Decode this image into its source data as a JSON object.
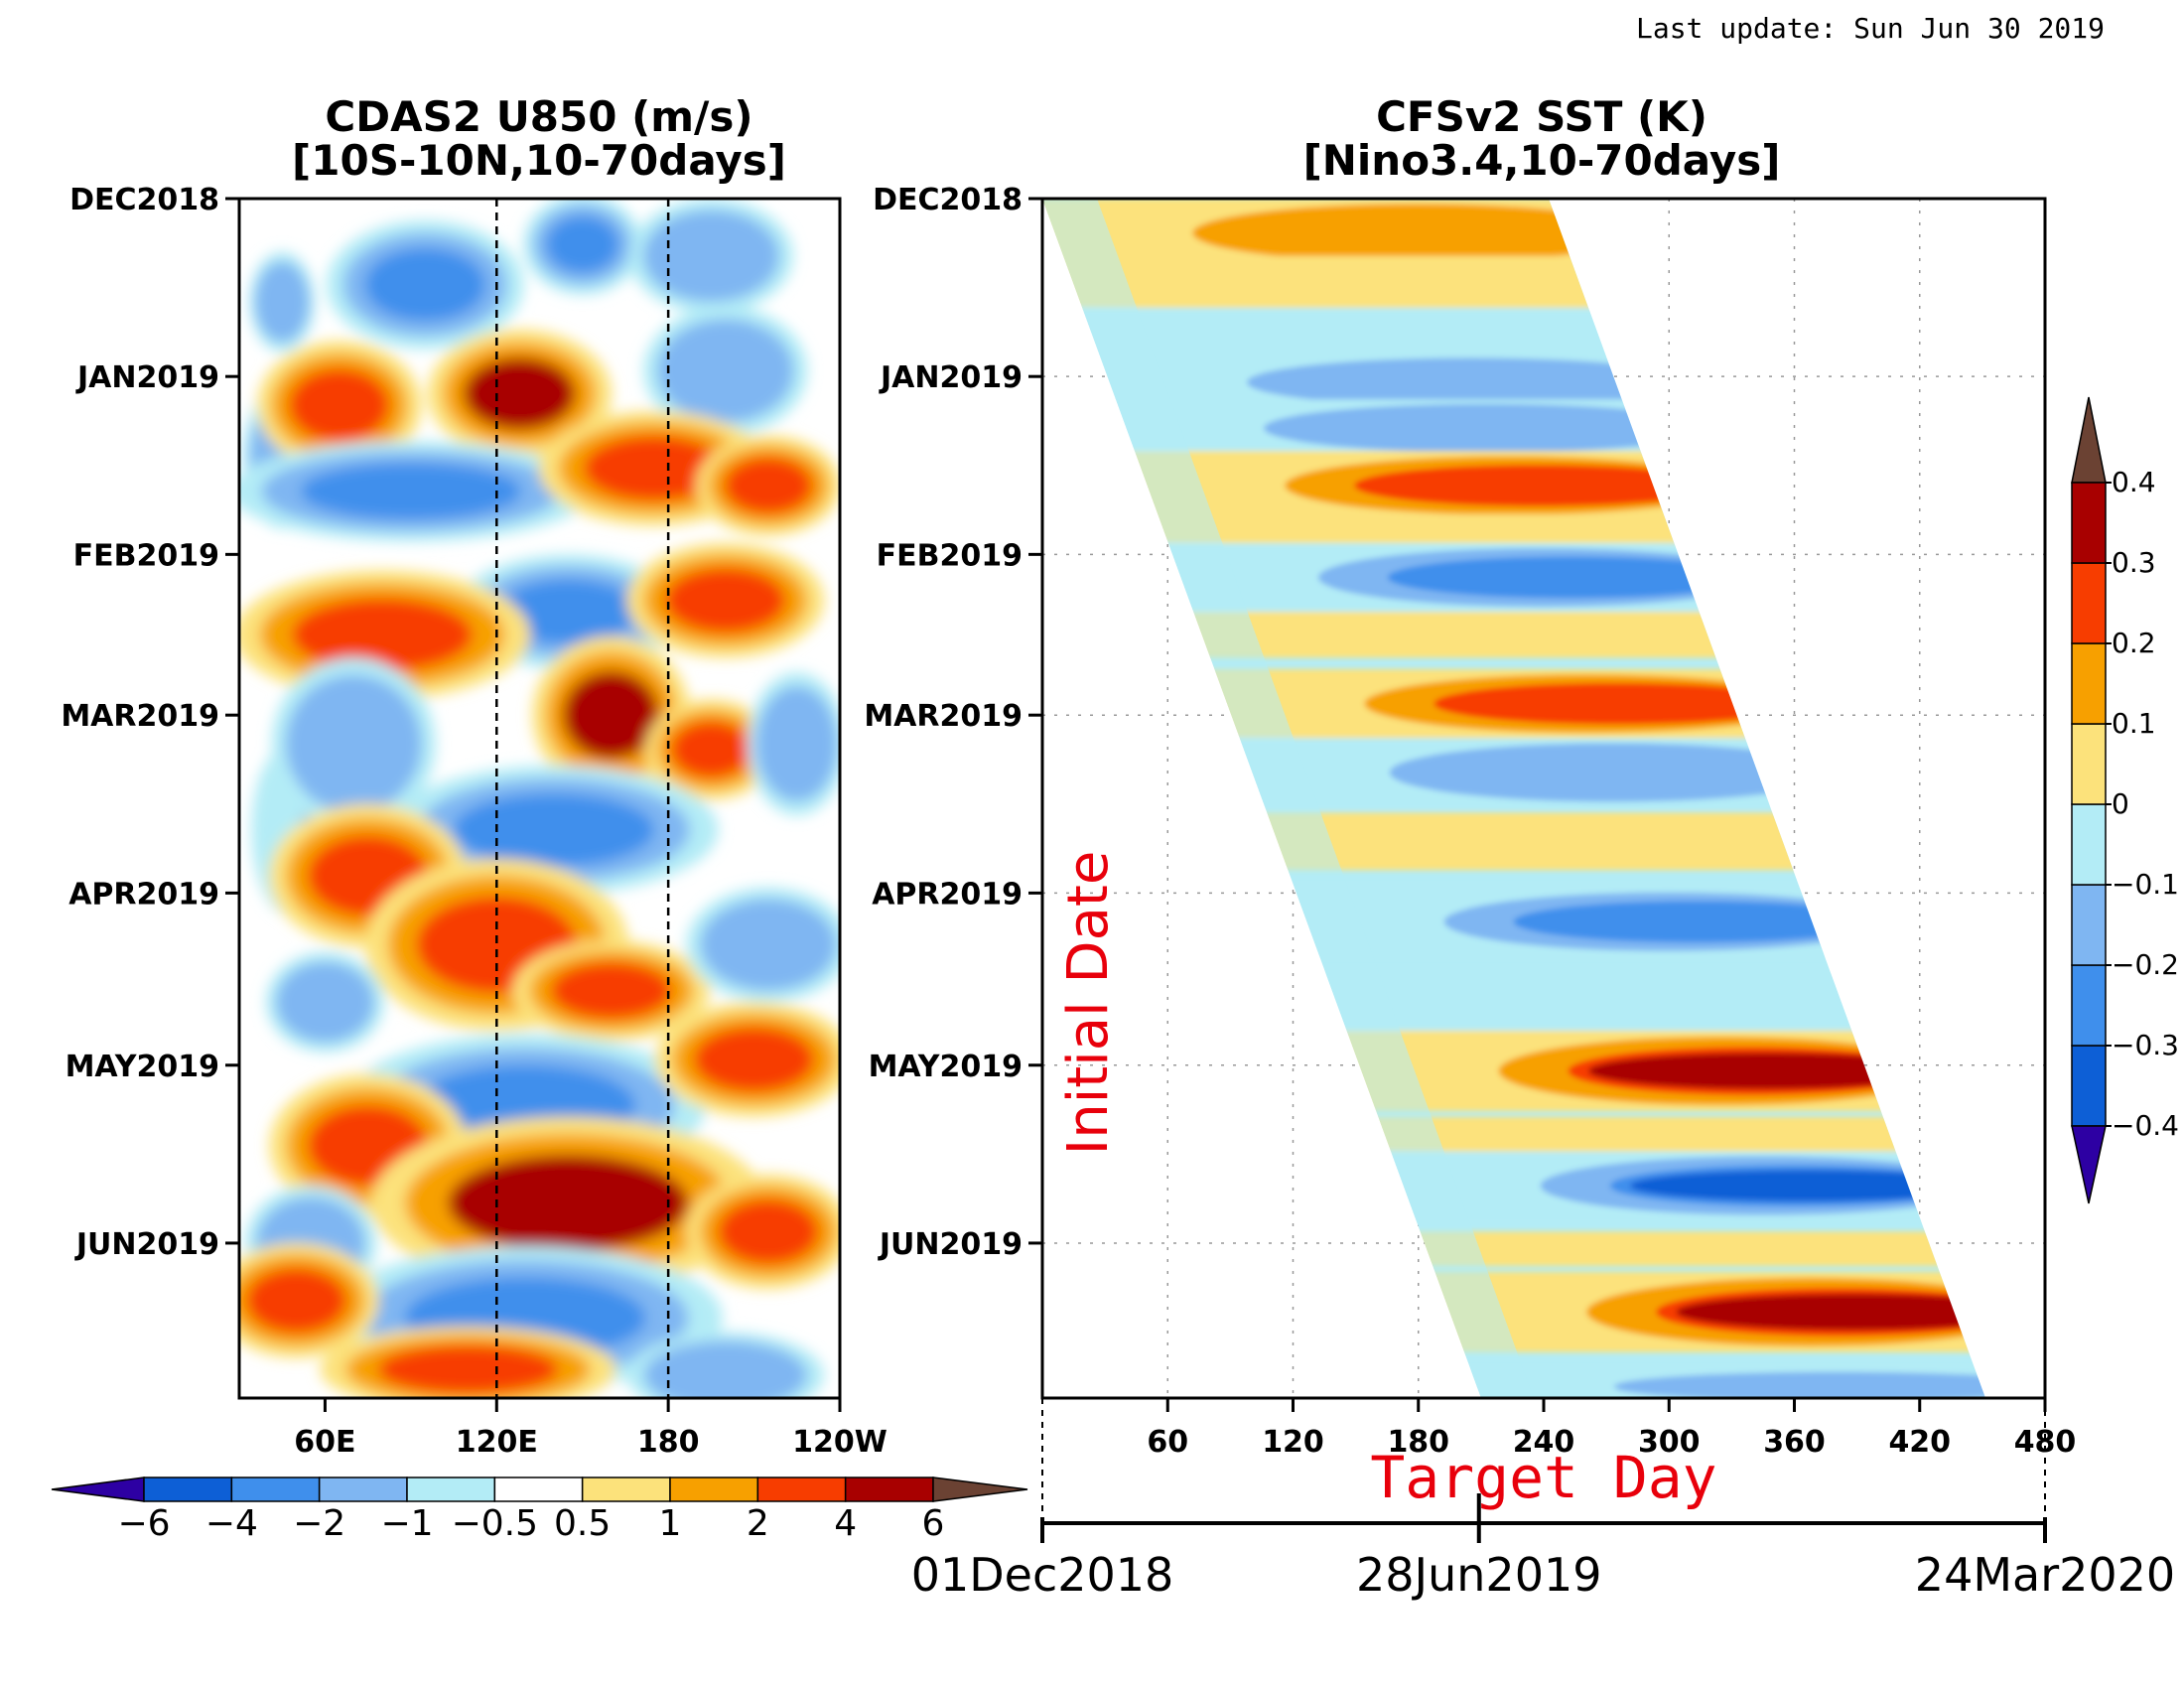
{
  "last_update": "Last update: Sun Jun 30 2019",
  "chart_data": [
    {
      "type": "heatmap",
      "title": "CDAS2 U850 (m/s)",
      "subtitle": "[10S-10N,10-70days]",
      "x_ticks": [
        "60E",
        "120E",
        "180",
        "120W"
      ],
      "x_tick_values": [
        60,
        120,
        180,
        240
      ],
      "xlim": [
        30,
        240
      ],
      "y_ticks": [
        "DEC2018",
        "JAN2019",
        "FEB2019",
        "MAR2019",
        "APR2019",
        "MAY2019",
        "JUN2019"
      ],
      "y_tick_values": [
        0,
        31,
        62,
        90,
        121,
        151,
        182
      ],
      "ylim": [
        0,
        209
      ],
      "reference_lines": [
        120,
        180
      ],
      "levels": [
        -6,
        -4,
        -2,
        -1,
        -0.5,
        0.5,
        1,
        2,
        4,
        6
      ],
      "colorbar_labels": [
        "−6",
        "−4",
        "−2",
        "−1",
        "−0.5",
        "0.5",
        "1",
        "2",
        "4",
        "6"
      ],
      "colorbar_colors": [
        "#2d00a3",
        "#0d5fd6",
        "#3f8fec",
        "#7fb6f2",
        "#b3ecf6",
        "#ffffff",
        "#fce27b",
        "#f7a000",
        "#f73d00",
        "#a80000",
        "#6b4233"
      ],
      "colorbar_orientation": "horizontal",
      "features": [
        {
          "lon": 45,
          "day": 18,
          "v": -1.2,
          "rx": 10,
          "ry": 7
        },
        {
          "lon": 45,
          "day": 45,
          "v": -1.8,
          "rx": 12,
          "ry": 10
        },
        {
          "lon": 48,
          "day": 110,
          "v": -1.0,
          "rx": 12,
          "ry": 12
        },
        {
          "lon": 60,
          "day": 112,
          "v": -2.3,
          "rx": 10,
          "ry": 8
        },
        {
          "lon": 95,
          "day": 15,
          "v": -2.8,
          "rx": 30,
          "ry": 9
        },
        {
          "lon": 150,
          "day": 8,
          "v": -2.6,
          "rx": 18,
          "ry": 7
        },
        {
          "lon": 195,
          "day": 10,
          "v": -1.5,
          "rx": 25,
          "ry": 8
        },
        {
          "lon": 65,
          "day": 36,
          "v": 3.0,
          "rx": 25,
          "ry": 9
        },
        {
          "lon": 128,
          "day": 34,
          "v": 4.5,
          "rx": 28,
          "ry": 9
        },
        {
          "lon": 200,
          "day": 30,
          "v": -2.0,
          "rx": 25,
          "ry": 9
        },
        {
          "lon": 90,
          "day": 51,
          "v": -3.5,
          "rx": 55,
          "ry": 7
        },
        {
          "lon": 175,
          "day": 47,
          "v": 3.5,
          "rx": 35,
          "ry": 8
        },
        {
          "lon": 215,
          "day": 50,
          "v": 2.8,
          "rx": 22,
          "ry": 7
        },
        {
          "lon": 145,
          "day": 72,
          "v": -2.7,
          "rx": 35,
          "ry": 8
        },
        {
          "lon": 80,
          "day": 76,
          "v": 3.5,
          "rx": 45,
          "ry": 9
        },
        {
          "lon": 200,
          "day": 70,
          "v": 3.0,
          "rx": 30,
          "ry": 8
        },
        {
          "lon": 70,
          "day": 95,
          "v": -1.6,
          "rx": 25,
          "ry": 12
        },
        {
          "lon": 160,
          "day": 90,
          "v": 4.5,
          "rx": 24,
          "ry": 11
        },
        {
          "lon": 195,
          "day": 96,
          "v": 2.5,
          "rx": 20,
          "ry": 7
        },
        {
          "lon": 225,
          "day": 95,
          "v": -1.2,
          "rx": 15,
          "ry": 10
        },
        {
          "lon": 140,
          "day": 110,
          "v": -2.8,
          "rx": 50,
          "ry": 9
        },
        {
          "lon": 75,
          "day": 118,
          "v": 2.3,
          "rx": 30,
          "ry": 10
        },
        {
          "lon": 120,
          "day": 130,
          "v": 2.0,
          "rx": 40,
          "ry": 12
        },
        {
          "lon": 160,
          "day": 138,
          "v": 2.6,
          "rx": 30,
          "ry": 7
        },
        {
          "lon": 215,
          "day": 130,
          "v": -1.5,
          "rx": 25,
          "ry": 8
        },
        {
          "lon": 60,
          "day": 140,
          "v": -1.6,
          "rx": 18,
          "ry": 7
        },
        {
          "lon": 130,
          "day": 158,
          "v": -3.0,
          "rx": 55,
          "ry": 10
        },
        {
          "lon": 210,
          "day": 150,
          "v": 2.5,
          "rx": 30,
          "ry": 8
        },
        {
          "lon": 75,
          "day": 165,
          "v": 3.2,
          "rx": 30,
          "ry": 10
        },
        {
          "lon": 145,
          "day": 175,
          "v": 4.0,
          "rx": 60,
          "ry": 12
        },
        {
          "lon": 215,
          "day": 180,
          "v": 2.5,
          "rx": 25,
          "ry": 8
        },
        {
          "lon": 55,
          "day": 182,
          "v": -1.3,
          "rx": 20,
          "ry": 8
        },
        {
          "lon": 130,
          "day": 195,
          "v": -2.5,
          "rx": 60,
          "ry": 10
        },
        {
          "lon": 50,
          "day": 192,
          "v": 2.5,
          "rx": 25,
          "ry": 8
        },
        {
          "lon": 110,
          "day": 204,
          "v": 3.0,
          "rx": 45,
          "ry": 6
        },
        {
          "lon": 200,
          "day": 205,
          "v": -1.4,
          "rx": 30,
          "ry": 6
        }
      ]
    },
    {
      "type": "heatmap",
      "title": "CFSv2 SST (K)",
      "subtitle": "[Nino3.4,10-70days]",
      "x_ticks": [
        "60",
        "120",
        "180",
        "240",
        "300",
        "360",
        "420",
        "480"
      ],
      "x_tick_values": [
        60,
        120,
        180,
        240,
        300,
        360,
        420,
        480
      ],
      "xlim": [
        0,
        480
      ],
      "y_ticks": [
        "DEC2018",
        "JAN2019",
        "FEB2019",
        "MAR2019",
        "APR2019",
        "MAY2019",
        "JUN2019"
      ],
      "y_tick_values": [
        0,
        31,
        62,
        90,
        121,
        151,
        182
      ],
      "ylim": [
        0,
        209
      ],
      "y_axis_label": "Initial Date",
      "x_axis_label": "Target Day",
      "date_axis": [
        "01Dec2018",
        "28Jun2019",
        "24Mar2020"
      ],
      "date_axis_values": [
        0,
        209,
        480
      ],
      "levels": [
        -0.4,
        -0.3,
        -0.2,
        -0.1,
        0,
        0.1,
        0.2,
        0.3,
        0.4
      ],
      "colorbar_labels": [
        "−0.4",
        "−0.3",
        "−0.2",
        "−0.1",
        "0",
        "0.1",
        "0.2",
        "0.3",
        "0.4"
      ],
      "colorbar_colors": [
        "#2d00a3",
        "#0d5fd6",
        "#3f8fec",
        "#7fb6f2",
        "#b3ecf6",
        "#fce27b",
        "#f7a000",
        "#f73d00",
        "#a80000",
        "#6b4233"
      ],
      "colorbar_orientation": "vertical",
      "bands": [
        {
          "day": 6,
          "v": 0.12,
          "h": 6
        },
        {
          "day": 15,
          "v": 0.08,
          "h": 5
        },
        {
          "day": 24,
          "v": -0.05,
          "h": 5
        },
        {
          "day": 32,
          "v": -0.13,
          "h": 5
        },
        {
          "day": 40,
          "v": -0.12,
          "h": 5
        },
        {
          "day": 50,
          "v": 0.25,
          "h": 6
        },
        {
          "day": 58,
          "v": 0.02,
          "h": 3
        },
        {
          "day": 66,
          "v": -0.3,
          "h": 6
        },
        {
          "day": 76,
          "v": 0.02,
          "h": 4
        },
        {
          "day": 88,
          "v": 0.25,
          "h": 6
        },
        {
          "day": 100,
          "v": -0.15,
          "h": 6
        },
        {
          "day": 112,
          "v": 0.06,
          "h": 5
        },
        {
          "day": 126,
          "v": -0.22,
          "h": 6
        },
        {
          "day": 140,
          "v": -0.07,
          "h": 5
        },
        {
          "day": 152,
          "v": 0.36,
          "h": 7
        },
        {
          "day": 163,
          "v": 0.05,
          "h": 3
        },
        {
          "day": 172,
          "v": -0.38,
          "h": 6
        },
        {
          "day": 183,
          "v": 0.05,
          "h": 3
        },
        {
          "day": 194,
          "v": 0.34,
          "h": 7
        },
        {
          "day": 207,
          "v": -0.2,
          "h": 3
        }
      ]
    }
  ]
}
